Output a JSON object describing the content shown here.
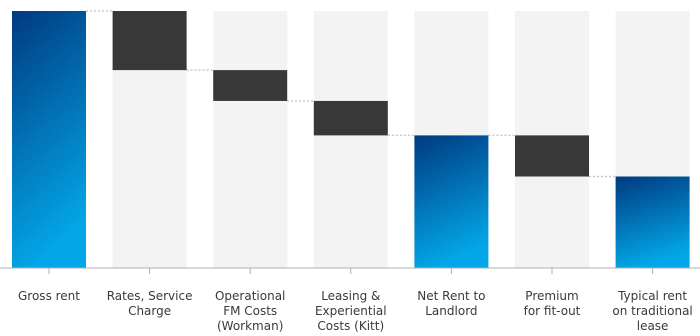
{
  "chart_data": {
    "type": "waterfall",
    "categories": [
      [
        "Gross rent"
      ],
      [
        "Rates, Service",
        "Charge"
      ],
      [
        "Operational",
        "FM Costs",
        "(Workman)"
      ],
      [
        "Leasing &",
        "Experiential",
        "Costs (Kitt)"
      ],
      [
        "Net Rent to",
        "Landlord"
      ],
      [
        "Premium",
        "for fit-out"
      ],
      [
        "Typical rent",
        "on traditional",
        "lease"
      ]
    ],
    "steps": [
      {
        "kind": "total",
        "start": 0,
        "end": 100
      },
      {
        "kind": "decrease",
        "start": 100,
        "end": 77
      },
      {
        "kind": "decrease",
        "start": 77,
        "end": 65
      },
      {
        "kind": "decrease",
        "start": 65,
        "end": 51.6
      },
      {
        "kind": "total",
        "start": 0,
        "end": 51.6
      },
      {
        "kind": "decrease",
        "start": 51.6,
        "end": 35.6
      },
      {
        "kind": "total",
        "start": 0,
        "end": 35.6
      }
    ],
    "ylim": [
      0,
      100
    ],
    "colors": {
      "total_top": "#003a80",
      "total_bottom": "#03a6e6",
      "decrease": "#383838",
      "background_column": "#f3f3f3",
      "connector": "#c8c8c8",
      "axis": "#b0b0b0"
    }
  }
}
